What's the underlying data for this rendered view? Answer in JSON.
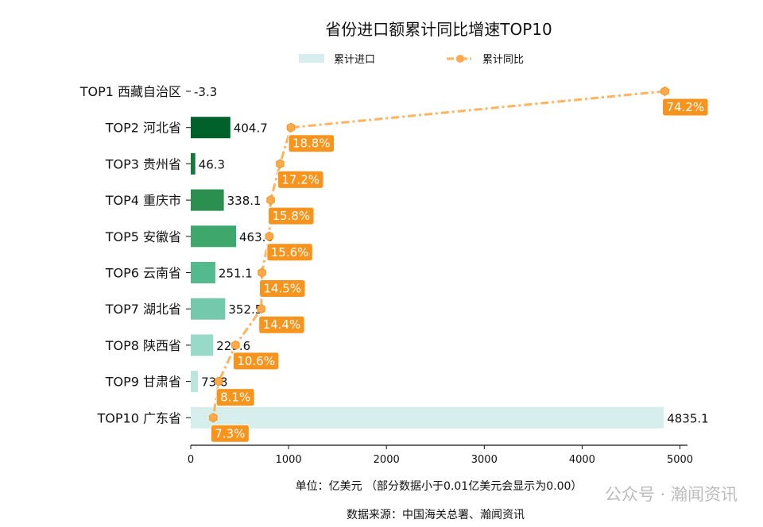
{
  "chart_data": {
    "type": "bar",
    "orientation": "horizontal",
    "title": "省份进口额累计同比增速TOP10",
    "categories": [
      "TOP1 西藏自治区",
      "TOP2 河北省",
      "TOP3 贵州省",
      "TOP4 重庆市",
      "TOP5 安徽省",
      "TOP6 云南省",
      "TOP7 湖北省",
      "TOP8 陕西省",
      "TOP9 甘肃省",
      "TOP10 广东省"
    ],
    "series": [
      {
        "name": "累计进口",
        "type": "bar",
        "values": [
          -3.3,
          404.7,
          46.3,
          338.1,
          463.0,
          251.1,
          352.5,
          229.6,
          73.8,
          4835.1
        ],
        "labels": [
          "-3.3",
          "404.7",
          "46.3",
          "338.1",
          "463.0",
          "251.1",
          "352.5",
          "229.6",
          "73.8",
          "4835.1"
        ],
        "colors": [
          "#00441b",
          "#00612b",
          "#16783b",
          "#2a8f4f",
          "#3ea76b",
          "#52ba8c",
          "#74c8ac",
          "#98dac8",
          "#bce6dd",
          "#d6efec"
        ]
      },
      {
        "name": "累计同比",
        "type": "line",
        "values": [
          74.2,
          18.8,
          17.2,
          15.8,
          15.6,
          14.5,
          14.4,
          10.6,
          8.1,
          7.3
        ],
        "labels": [
          "74.2%",
          "18.8%",
          "17.2%",
          "15.8%",
          "15.6%",
          "14.5%",
          "14.4%",
          "10.6%",
          "8.1%",
          "7.3%"
        ],
        "color": "#ffb35c",
        "label_color": "#f7941d",
        "line_style": "dash-dot",
        "marker": "hexagon",
        "xlim": [
          3.96,
          77.55
        ]
      }
    ],
    "xlim": [
      0,
      5077
    ],
    "xticks": [
      "0",
      "1000",
      "2000",
      "3000",
      "4000",
      "5000"
    ],
    "xlabel": "单位：亿美元  （部分数据小于0.01亿美元会显示为0.00）",
    "source": "数据来源：中国海关总署、瀚闻资讯",
    "legend_placement": "top-center",
    "grid": false
  },
  "watermark": "公众号 · 瀚闻资讯"
}
